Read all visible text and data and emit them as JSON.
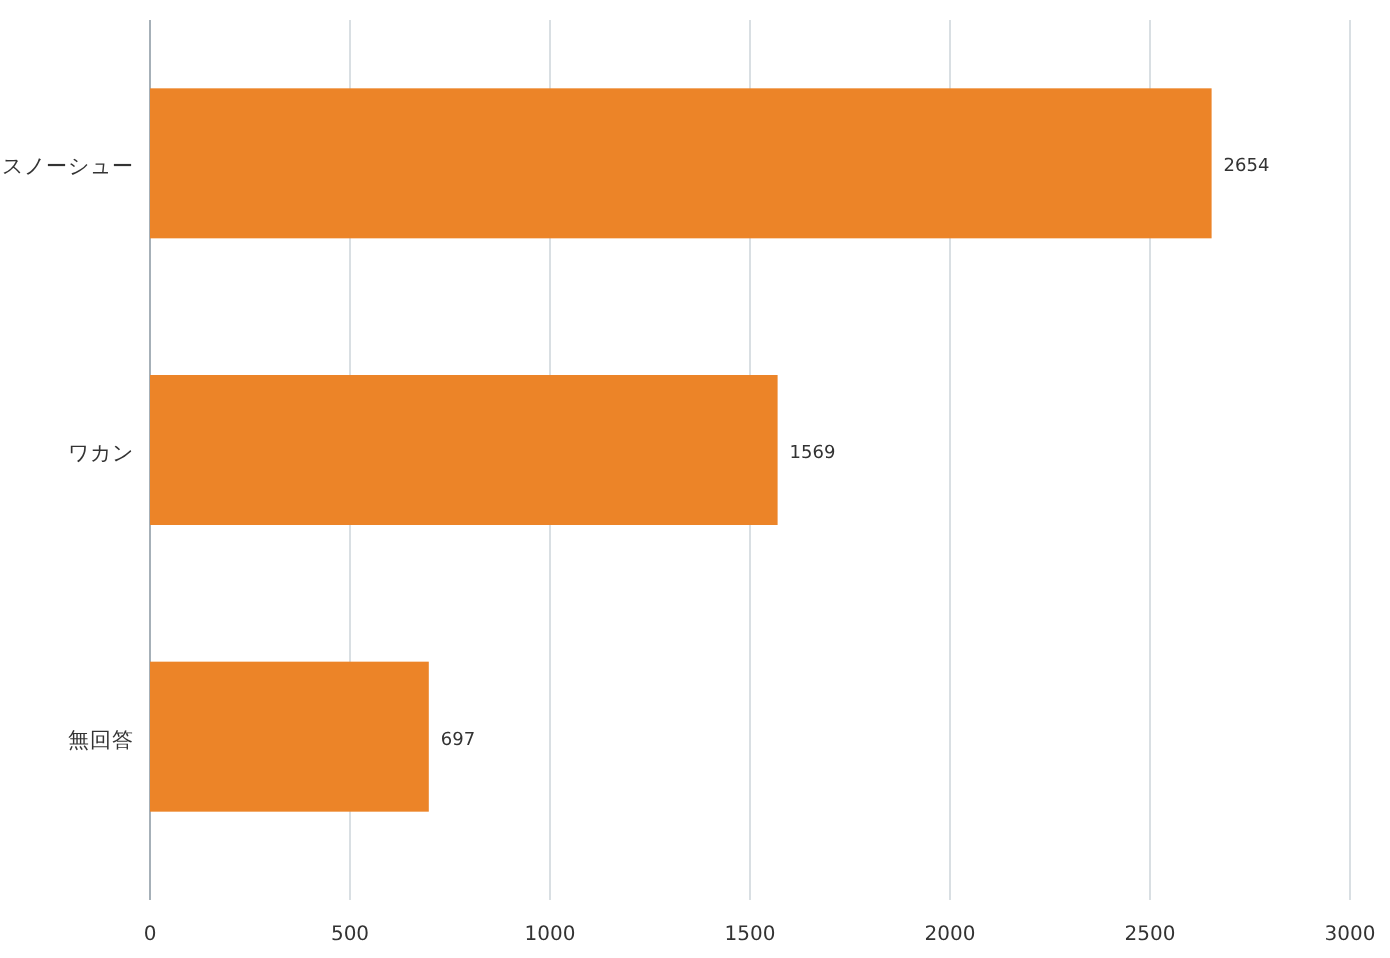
{
  "chart_data": {
    "type": "bar",
    "orientation": "horizontal",
    "categories": [
      "スノーシュー",
      "ワカン",
      "無回答"
    ],
    "values": [
      2654,
      1569,
      697
    ],
    "color": "#ec8428",
    "xlim": [
      0,
      3000
    ],
    "xticks": [
      0,
      500,
      1000,
      1500,
      2000,
      2500,
      3000
    ],
    "grid": "x",
    "data_labels": true
  }
}
